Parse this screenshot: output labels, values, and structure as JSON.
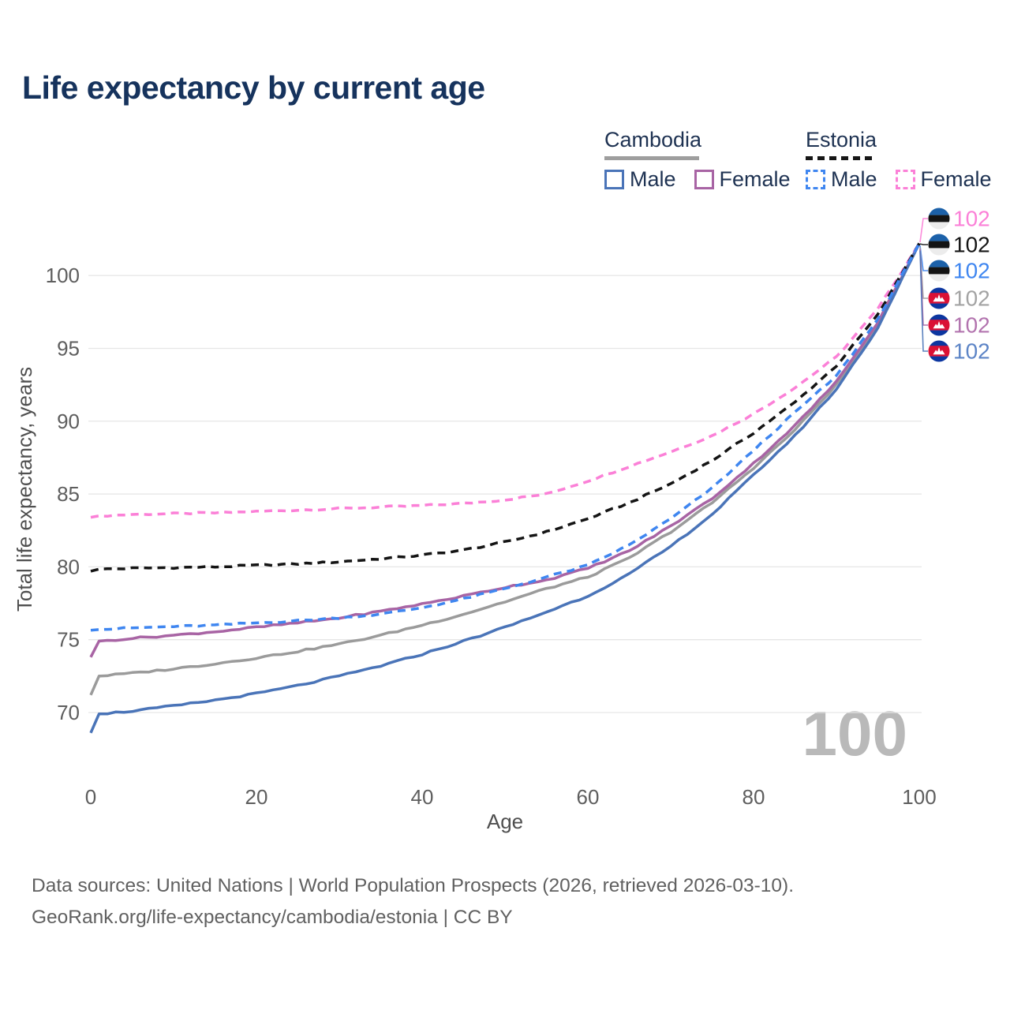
{
  "header": {
    "title": "Life expectancy by current age"
  },
  "legend": {
    "groups": [
      {
        "label": "Cambodia",
        "line_style": "solid-gray",
        "items": [
          {
            "label": "Male"
          },
          {
            "label": "Female"
          }
        ]
      },
      {
        "label": "Estonia",
        "line_style": "dashed-black",
        "items": [
          {
            "label": "Male"
          },
          {
            "label": "Female"
          }
        ]
      }
    ]
  },
  "footer": {
    "line1": "Data sources: United Nations | World Population Prospects (2026, retrieved 2026-03-10).",
    "line2": "GeoRank.org/life-expectancy/cambodia/estonia | CC BY"
  },
  "chart_data": {
    "type": "line",
    "title": "Life expectancy by current age",
    "xlabel": "Age",
    "ylabel": "Total life expectancy, years",
    "xlim": [
      0,
      100
    ],
    "ylim": [
      68,
      104.5
    ],
    "xticks": [
      0,
      20,
      40,
      60,
      80,
      100
    ],
    "yticks": [
      70,
      75,
      80,
      85,
      90,
      95,
      100
    ],
    "grid": "horizontal-only",
    "watermark": "100",
    "axis_color": "#5e5e5e",
    "grid_color": "#e6e6e6",
    "watermark_color": "#b9b9b9",
    "series": [
      {
        "name": "Estonia Female",
        "country": "estonia",
        "sex": "female",
        "line": "dashed",
        "color": "#fb80d7",
        "label_color": "#fb80d7",
        "end_label": "102",
        "ages": [
          0,
          1,
          5,
          10,
          15,
          20,
          25,
          30,
          35,
          40,
          45,
          50,
          55,
          60,
          65,
          70,
          75,
          80,
          85,
          90,
          95,
          100
        ],
        "values": [
          83.4,
          83.5,
          83.6,
          83.65,
          83.7,
          83.8,
          83.9,
          84.0,
          84.1,
          84.2,
          84.35,
          84.6,
          85.0,
          85.9,
          86.9,
          87.9,
          89.0,
          90.5,
          92.3,
          94.4,
          97.7,
          102.2
        ]
      },
      {
        "name": "Estonia Total",
        "country": "estonia",
        "sex": "total",
        "line": "dashed",
        "color": "#141414",
        "label_color": "#141414",
        "end_label": "102",
        "ages": [
          0,
          1,
          5,
          10,
          15,
          20,
          25,
          30,
          35,
          40,
          45,
          50,
          55,
          60,
          65,
          70,
          75,
          80,
          85,
          90,
          95,
          100
        ],
        "values": [
          79.7,
          79.85,
          79.9,
          79.95,
          80.0,
          80.1,
          80.2,
          80.35,
          80.55,
          80.8,
          81.15,
          81.7,
          82.4,
          83.3,
          84.4,
          85.7,
          87.3,
          89.2,
          91.3,
          93.8,
          97.3,
          102.2
        ]
      },
      {
        "name": "Estonia Male",
        "country": "estonia",
        "sex": "male",
        "line": "dashed",
        "color": "#3f86f0",
        "label_color": "#3f86f0",
        "end_label": "102",
        "ages": [
          0,
          1,
          5,
          10,
          15,
          20,
          25,
          30,
          35,
          40,
          45,
          50,
          55,
          60,
          65,
          70,
          75,
          80,
          85,
          90,
          95,
          100
        ],
        "values": [
          75.65,
          75.7,
          75.8,
          75.9,
          76.0,
          76.15,
          76.3,
          76.5,
          76.75,
          77.2,
          77.8,
          78.5,
          79.3,
          80.1,
          81.5,
          83.3,
          85.4,
          88.0,
          90.6,
          93.1,
          97.0,
          102.2
        ]
      },
      {
        "name": "Cambodia Total",
        "country": "cambodia",
        "sex": "total",
        "line": "solid",
        "color": "#9b9b9b",
        "label_color": "#a3a3a3",
        "end_label": "102",
        "ages": [
          0,
          1,
          5,
          10,
          15,
          20,
          25,
          30,
          35,
          40,
          45,
          50,
          55,
          60,
          65,
          70,
          75,
          80,
          85,
          90,
          95,
          100
        ],
        "values": [
          71.2,
          72.5,
          72.7,
          73.0,
          73.35,
          73.75,
          74.2,
          74.7,
          75.3,
          76.0,
          76.75,
          77.6,
          78.5,
          79.3,
          80.6,
          82.4,
          84.4,
          86.8,
          89.4,
          92.5,
          96.6,
          102.2
        ]
      },
      {
        "name": "Cambodia Female",
        "country": "cambodia",
        "sex": "female",
        "line": "solid",
        "color": "#a864a4",
        "label_color": "#b273ae",
        "end_label": "102",
        "ages": [
          0,
          1,
          5,
          10,
          15,
          20,
          25,
          30,
          35,
          40,
          45,
          50,
          55,
          60,
          65,
          70,
          75,
          80,
          85,
          90,
          95,
          100
        ],
        "values": [
          73.8,
          74.9,
          75.1,
          75.3,
          75.55,
          75.85,
          76.15,
          76.5,
          76.95,
          77.45,
          78.0,
          78.6,
          79.1,
          79.9,
          81.1,
          82.8,
          84.7,
          87.1,
          89.7,
          92.7,
          96.8,
          102.2
        ]
      },
      {
        "name": "Cambodia Male",
        "country": "cambodia",
        "sex": "male",
        "line": "solid",
        "color": "#4a74b8",
        "label_color": "#5c84c6",
        "end_label": "102",
        "ages": [
          0,
          1,
          5,
          10,
          15,
          20,
          25,
          30,
          35,
          40,
          45,
          50,
          55,
          60,
          65,
          70,
          75,
          80,
          85,
          90,
          95,
          100
        ],
        "values": [
          68.6,
          69.9,
          70.1,
          70.45,
          70.85,
          71.3,
          71.85,
          72.5,
          73.2,
          74.0,
          74.9,
          75.85,
          76.9,
          78.0,
          79.5,
          81.4,
          83.6,
          86.3,
          89.0,
          92.2,
          96.4,
          102.2
        ]
      }
    ]
  }
}
